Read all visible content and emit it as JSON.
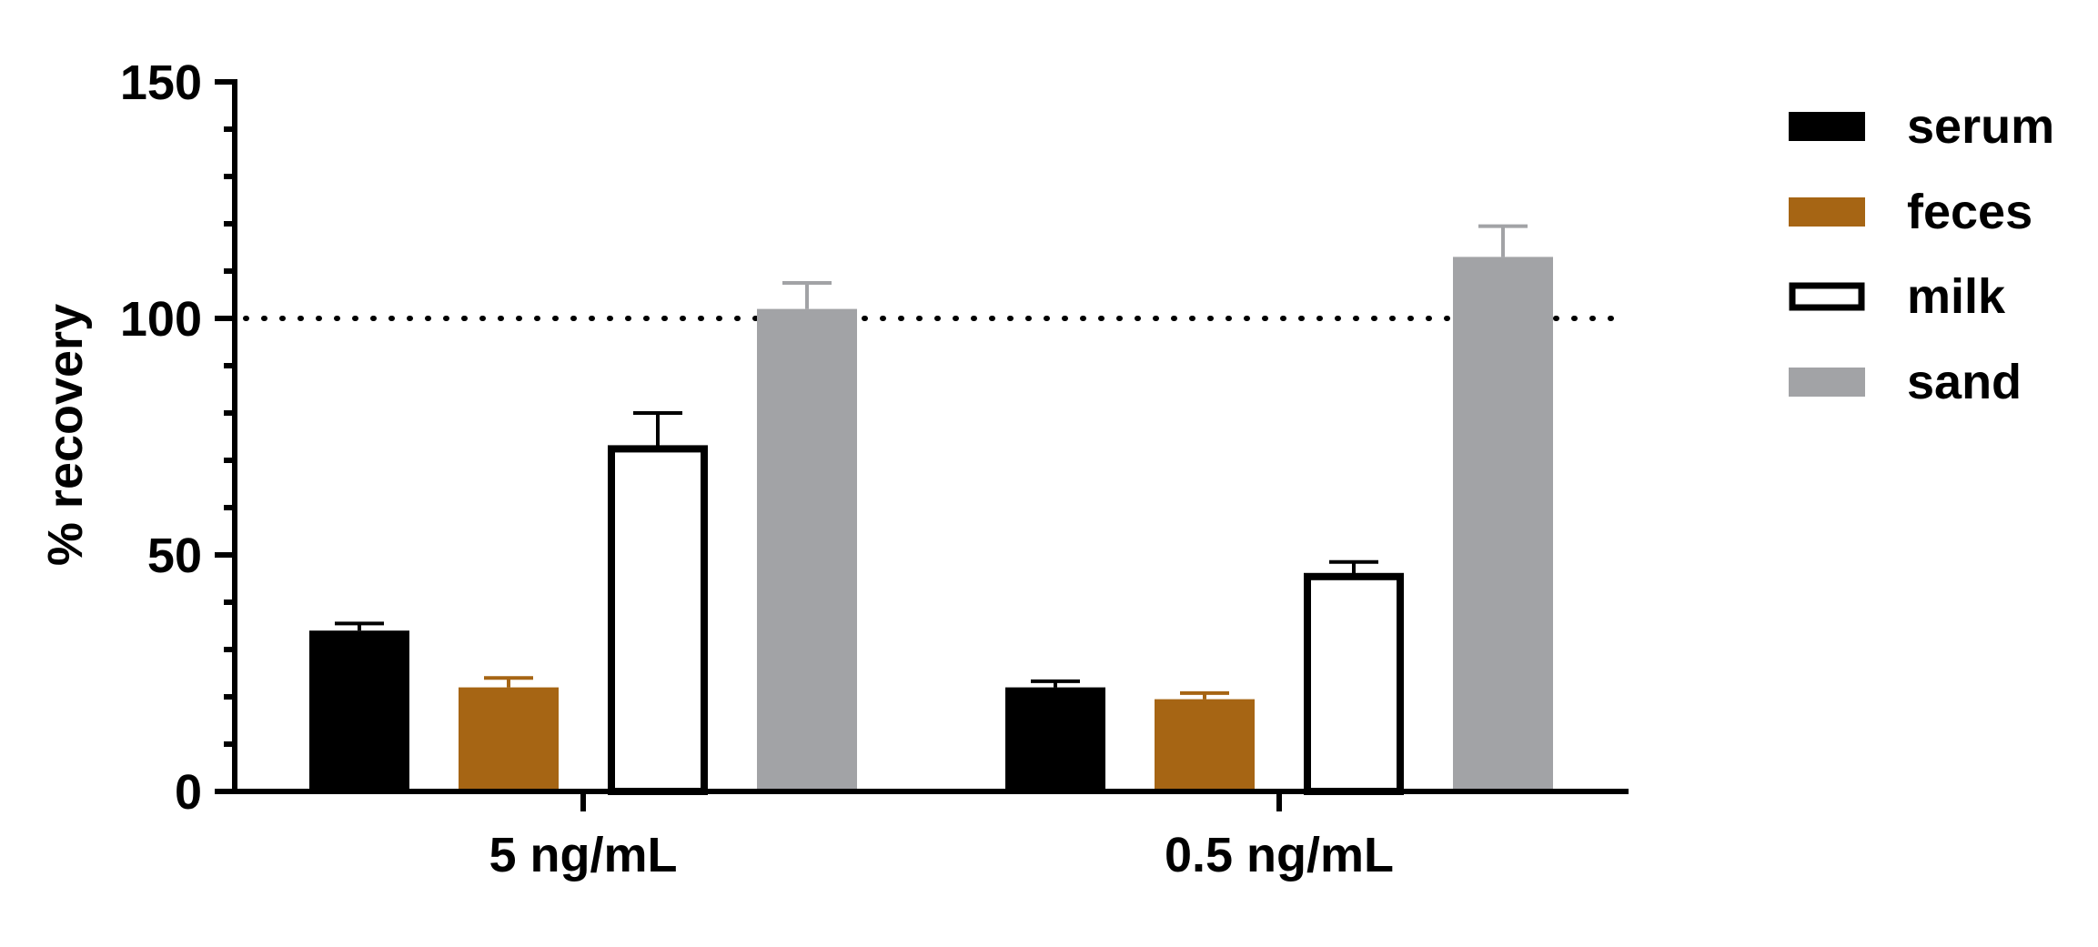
{
  "chart_data": {
    "type": "bar",
    "categories": [
      "5 ng/mL",
      "0.5 ng/mL"
    ],
    "series": [
      {
        "name": "serum",
        "values": [
          34,
          22
        ],
        "errors": [
          1.5,
          1.3
        ],
        "color": "#000000",
        "fill": "solid"
      },
      {
        "name": "feces",
        "values": [
          22,
          19.5
        ],
        "errors": [
          2.0,
          1.3
        ],
        "color": "#a66514",
        "fill": "solid"
      },
      {
        "name": "milk",
        "values": [
          73,
          46
        ],
        "errors": [
          7.0,
          2.5
        ],
        "color": "#000000",
        "fill": "outline"
      },
      {
        "name": "sand",
        "values": [
          102,
          113
        ],
        "errors": [
          5.5,
          6.5
        ],
        "color": "#a2a3a6",
        "fill": "solid"
      }
    ],
    "ylabel": "% recovery",
    "xlabel": "",
    "ylim": [
      0,
      150
    ],
    "yticks": [
      "0",
      "50",
      "100",
      "150"
    ],
    "reference_line": {
      "value": 100,
      "style": "dotted"
    },
    "grid": false,
    "legend_position": "top-right"
  }
}
